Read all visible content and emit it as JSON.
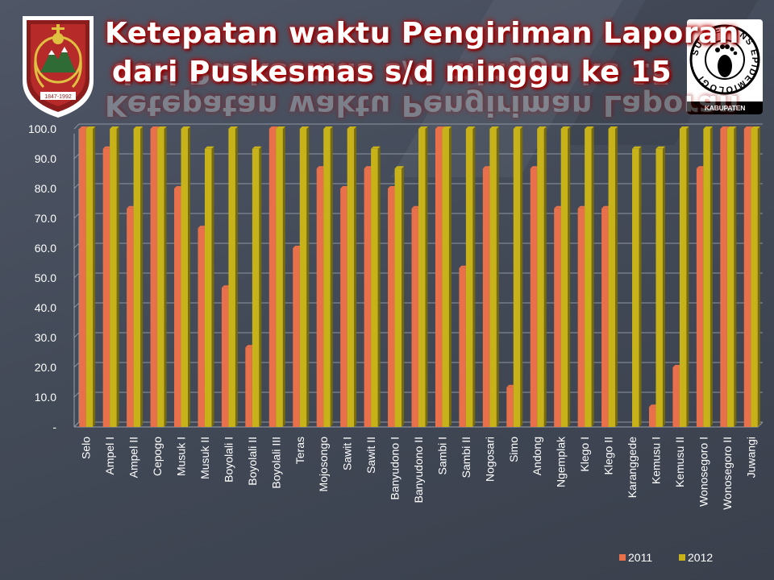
{
  "title": {
    "line1": "Ketepatan waktu Pengiriman Laporan",
    "line2": "dari Puskesmas s/d minggu ke 15"
  },
  "logo_right": {
    "ring_text": "SURVEILANS EPIDEMIOLOGI",
    "caption": "KABUPATEN BOYOLALI"
  },
  "colors": {
    "series_2011": "#e8704a",
    "series_2012": "#c7b219",
    "background": "#474e5c",
    "text": "#ffffff"
  },
  "chart_data": {
    "type": "bar",
    "title": "Ketepatan waktu Pengiriman Laporan dari Puskesmas s/d minggu ke 15",
    "xlabel": "",
    "ylabel": "",
    "ylim": [
      0,
      100
    ],
    "yticks": [
      "-",
      "10.0",
      "20.0",
      "30.0",
      "40.0",
      "50.0",
      "60.0",
      "70.0",
      "80.0",
      "90.0",
      "100.0"
    ],
    "grid": true,
    "legend": "bottom-right",
    "categories": [
      "Selo",
      "Ampel I",
      "Ampel II",
      "Cepogo",
      "Musuk I",
      "Musuk II",
      "Boyolali I",
      "Boyolali II",
      "Boyolali III",
      "Teras",
      "Mojosongo",
      "Sawit I",
      "Sawit II",
      "Banyudono I",
      "Banyudono II",
      "Sambi I",
      "Sambi II",
      "Nogosari",
      "Simo",
      "Andong",
      "Ngemplak",
      "Klego I",
      "Klego II",
      "Karanggede",
      "Kemusu I",
      "Kemusu II",
      "Wonosegoro I",
      "Wonosegoro II",
      "Juwangi"
    ],
    "series": [
      {
        "name": "2011",
        "values": [
          100.0,
          93.3,
          73.3,
          100.0,
          80.0,
          66.7,
          46.7,
          26.7,
          100.0,
          60.0,
          86.7,
          80.0,
          86.7,
          80.0,
          73.3,
          100.0,
          53.3,
          86.7,
          13.3,
          86.7,
          73.3,
          73.3,
          73.3,
          0.0,
          6.7,
          20.0,
          86.7,
          100.0,
          100.0
        ]
      },
      {
        "name": "2012",
        "values": [
          100.0,
          100.0,
          100.0,
          100.0,
          100.0,
          93.3,
          100.0,
          93.3,
          100.0,
          100.0,
          100.0,
          100.0,
          93.3,
          86.7,
          100.0,
          100.0,
          100.0,
          100.0,
          100.0,
          100.0,
          100.0,
          100.0,
          100.0,
          93.3,
          93.3,
          100.0,
          100.0,
          100.0,
          100.0
        ]
      }
    ]
  }
}
